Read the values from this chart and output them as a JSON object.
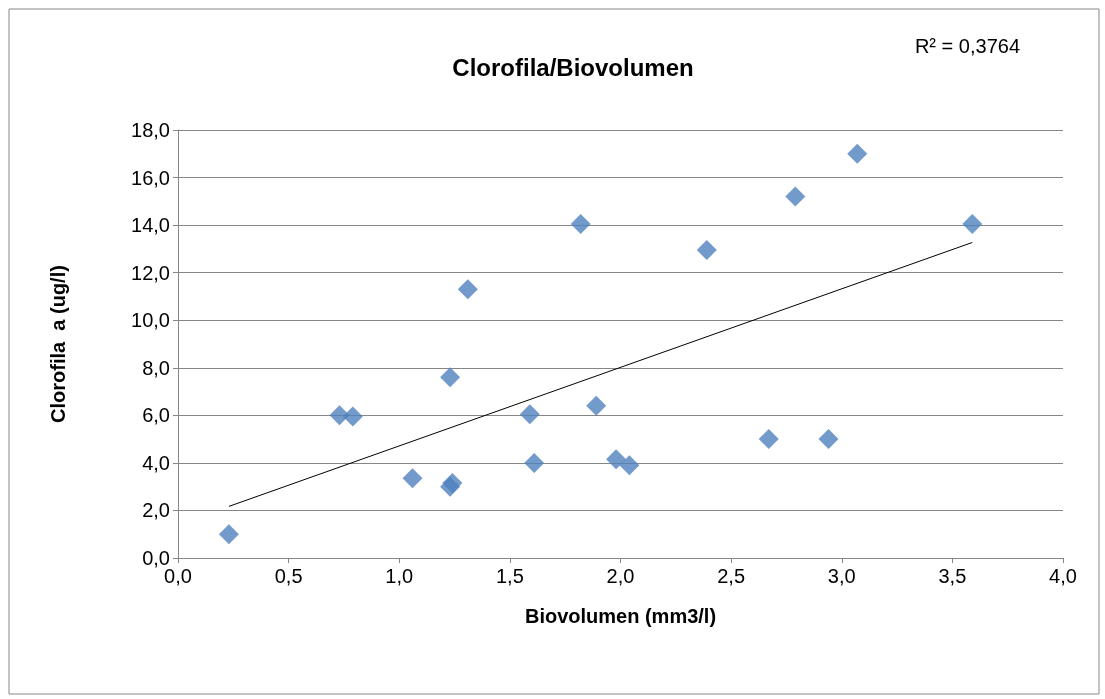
{
  "chart_data": {
    "type": "scatter",
    "title": "Clorofila/Biovolumen",
    "xlabel": "Biovolumen (mm3/l)",
    "ylabel": "Clorofila  a (ug/l)",
    "annotations": [
      "R² = 0,3764"
    ],
    "xlim": [
      0,
      4
    ],
    "xticks": [
      {
        "value": 0,
        "label": "0,0"
      },
      {
        "value": 0.5,
        "label": "0,5"
      },
      {
        "value": 1,
        "label": "1,0"
      },
      {
        "value": 1.5,
        "label": "1,5"
      },
      {
        "value": 2,
        "label": "2,0"
      },
      {
        "value": 2.5,
        "label": "2,5"
      },
      {
        "value": 3,
        "label": "3,0"
      },
      {
        "value": 3.5,
        "label": "3,5"
      },
      {
        "value": 4,
        "label": "4,0"
      }
    ],
    "ylim": [
      0,
      18
    ],
    "yticks": [
      {
        "value": 0,
        "label": "0,0"
      },
      {
        "value": 2,
        "label": "2,0"
      },
      {
        "value": 4,
        "label": "4,0"
      },
      {
        "value": 6,
        "label": "6,0"
      },
      {
        "value": 8,
        "label": "8,0"
      },
      {
        "value": 10,
        "label": "10,0"
      },
      {
        "value": 12,
        "label": "12,0"
      },
      {
        "value": 14,
        "label": "14,0"
      },
      {
        "value": 16,
        "label": "16,0"
      },
      {
        "value": 18,
        "label": "18,0"
      }
    ],
    "grid": "y",
    "marker": "diamond",
    "series": [
      {
        "color": "#4f81bd",
        "x": [
          0.23,
          0.73,
          0.79,
          1.06,
          1.23,
          1.23,
          1.24,
          1.31,
          1.59,
          1.61,
          1.82,
          1.89,
          1.98,
          2.04,
          2.39,
          2.67,
          2.79,
          2.94,
          3.07,
          3.59
        ],
        "values": [
          1.0,
          6.0,
          5.95,
          3.35,
          7.6,
          3.0,
          3.15,
          11.3,
          6.05,
          4.0,
          14.05,
          6.4,
          4.15,
          3.9,
          12.95,
          5.0,
          15.2,
          5.0,
          17.0,
          14.05
        ]
      },
      {
        "type": "line",
        "color": "#000000",
        "line_style": "solid",
        "marker": "none",
        "x": [
          0.23,
          3.59
        ],
        "values": [
          2.17,
          13.27
        ]
      }
    ]
  }
}
